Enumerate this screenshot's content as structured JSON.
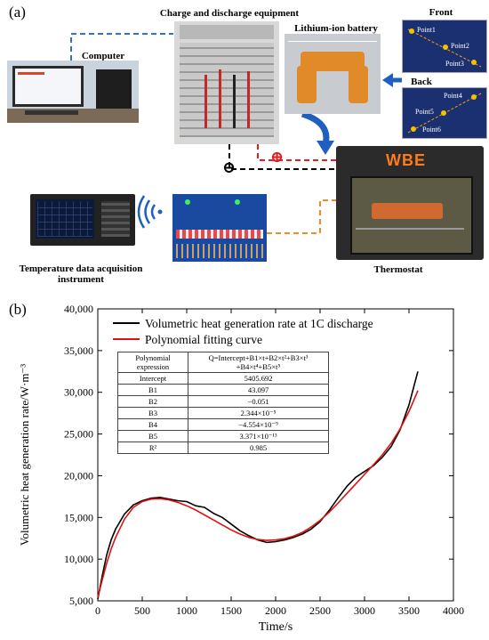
{
  "panel_a": {
    "letter": "(a)",
    "labels": {
      "charge_equipment": "Charge and discharge equipment",
      "computer": "Computer",
      "battery": "Lithium-ion battery",
      "front": "Front",
      "back": "Back",
      "thermostat": "Thermostat",
      "temp_instrument": "Temperature data acquisition instrument",
      "oven_brand": "WBE",
      "plus_symbol": "⊕",
      "minus_symbol": "⊖"
    },
    "points": [
      "Point1",
      "Point2",
      "Point3",
      "Point4",
      "Point5",
      "Point6"
    ],
    "colors": {
      "blue_line": "#2f6fd6",
      "red_line": "#e02020",
      "black_line": "#000000",
      "orange_line": "#f08a24",
      "battery_panel": "#1a3070",
      "point_dot": "#f5c000"
    }
  },
  "panel_b": {
    "letter": "(b)",
    "table": {
      "header": [
        "Polynomial expression",
        "Q=Intercept+B1×t+B2×t²+B3×t³ +B4×t⁴+B5×t⁵"
      ],
      "rows": [
        [
          "Intercept",
          "5405.692"
        ],
        [
          "B1",
          "43.097"
        ],
        [
          "B2",
          "−0.051"
        ],
        [
          "B3",
          "2.344×10⁻⁵"
        ],
        [
          "B4",
          "−4.554×10⁻⁹"
        ],
        [
          "B5",
          "3.371×10⁻¹³"
        ],
        [
          "R²",
          "0.985"
        ]
      ]
    }
  },
  "chart_data": {
    "type": "line",
    "title": "",
    "xlabel": "Time/s",
    "ylabel": "Volumetric heat generation rate/W·m⁻³",
    "xlim": [
      0,
      4000
    ],
    "ylim": [
      5000,
      40000
    ],
    "x_ticks": [
      0,
      500,
      1000,
      1500,
      2000,
      2500,
      3000,
      3500,
      4000
    ],
    "y_ticks": [
      "5,000",
      "10,000",
      "15,000",
      "20,000",
      "25,000",
      "30,000",
      "35,000",
      "40,000"
    ],
    "y_tick_values": [
      5000,
      10000,
      15000,
      20000,
      25000,
      30000,
      35000,
      40000
    ],
    "legend_position": "top-left",
    "series": [
      {
        "name": "Volumetric heat generation rate at 1C discharge",
        "color": "#000000",
        "x": [
          0,
          50,
          100,
          150,
          200,
          300,
          400,
          500,
          600,
          700,
          800,
          900,
          1000,
          1100,
          1200,
          1300,
          1400,
          1500,
          1600,
          1700,
          1800,
          1900,
          2000,
          2100,
          2200,
          2300,
          2400,
          2500,
          2600,
          2700,
          2800,
          2900,
          3000,
          3100,
          3200,
          3300,
          3400,
          3500,
          3600
        ],
        "values": [
          5200,
          8000,
          10500,
          12300,
          13600,
          15400,
          16500,
          17000,
          17300,
          17400,
          17200,
          17000,
          16900,
          16400,
          16200,
          15500,
          15000,
          14200,
          13400,
          12800,
          12300,
          12000,
          12100,
          12300,
          12600,
          13000,
          13600,
          14500,
          15800,
          17300,
          18700,
          19800,
          20500,
          21200,
          22200,
          23500,
          25500,
          28500,
          32500
        ]
      },
      {
        "name": "Polynomial fitting curve",
        "color": "#e01010",
        "x": [
          0,
          50,
          100,
          150,
          200,
          300,
          400,
          500,
          600,
          700,
          800,
          900,
          1000,
          1100,
          1200,
          1300,
          1400,
          1500,
          1600,
          1700,
          1800,
          1900,
          2000,
          2100,
          2200,
          2300,
          2400,
          2500,
          2600,
          2700,
          2800,
          2900,
          3000,
          3100,
          3200,
          3300,
          3400,
          3500,
          3600
        ],
        "values": [
          5400,
          7500,
          9500,
          11200,
          12600,
          14800,
          16200,
          16900,
          17200,
          17250,
          17100,
          16800,
          16400,
          15900,
          15300,
          14700,
          14100,
          13500,
          13000,
          12600,
          12350,
          12250,
          12300,
          12450,
          12750,
          13200,
          13850,
          14650,
          15600,
          16700,
          17850,
          19000,
          20150,
          21300,
          22500,
          23900,
          25600,
          27700,
          30200
        ]
      }
    ]
  }
}
